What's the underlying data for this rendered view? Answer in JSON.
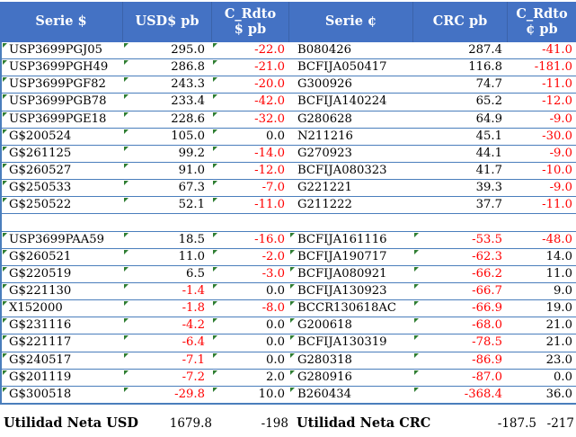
{
  "colors": {
    "header_bg": "#4472C4",
    "header_text": "#FFFFFF",
    "grid_line": "#4A7EBC",
    "negative_value": "#FF0000",
    "text": "#000000",
    "error_indicator_green": "#2E7D32"
  },
  "header": {
    "columns": [
      "Serie $",
      "USD$ pb",
      "C_Rdto\n$ pb",
      "Serie ¢",
      "CRC pb",
      "C_Rdto\n¢ pb"
    ]
  },
  "rows": [
    {
      "cells": [
        "USP3699PGJ05",
        "295.0",
        "-22.0",
        "B080426",
        "287.4",
        "-41.0"
      ],
      "flags": [
        0,
        1,
        2
      ]
    },
    {
      "cells": [
        "USP3699PGH49",
        "286.8",
        "-21.0",
        "BCFIJA050417",
        "116.8",
        "-181.0"
      ],
      "flags": [
        0,
        1,
        2
      ]
    },
    {
      "cells": [
        "USP3699PGF82",
        "243.3",
        "-20.0",
        "G300926",
        "74.7",
        "-11.0"
      ],
      "flags": [
        0,
        1,
        2
      ]
    },
    {
      "cells": [
        "USP3699PGB78",
        "233.4",
        "-42.0",
        "BCFIJA140224",
        "65.2",
        "-12.0"
      ],
      "flags": [
        0,
        1,
        2
      ]
    },
    {
      "cells": [
        "USP3699PGE18",
        "228.6",
        "-32.0",
        "G280628",
        "64.9",
        "-9.0"
      ],
      "flags": [
        0,
        1,
        2
      ]
    },
    {
      "cells": [
        "G$200524",
        "105.0",
        "0.0",
        "N211216",
        "45.1",
        "-30.0"
      ],
      "flags": [
        0,
        1,
        2
      ]
    },
    {
      "cells": [
        "G$261125",
        "99.2",
        "-14.0",
        "G270923",
        "44.1",
        "-9.0"
      ],
      "flags": [
        0,
        1,
        2
      ]
    },
    {
      "cells": [
        "G$260527",
        "91.0",
        "-12.0",
        "BCFIJA080323",
        "41.7",
        "-10.0"
      ],
      "flags": [
        0,
        1,
        2
      ]
    },
    {
      "cells": [
        "G$250533",
        "67.3",
        "-7.0",
        "G221221",
        "39.3",
        "-9.0"
      ],
      "flags": [
        0,
        1,
        2
      ]
    },
    {
      "cells": [
        "G$250522",
        "52.1",
        "-11.0",
        "G211222",
        "37.7",
        "-11.0"
      ],
      "flags": [
        0,
        1,
        2
      ]
    },
    {
      "blank": true,
      "cells": [
        "",
        "",
        "",
        "",
        "",
        ""
      ],
      "flags": []
    },
    {
      "cells": [
        "USP3699PAA59",
        "18.5",
        "-16.0",
        "BCFIJA161116",
        "-53.5",
        "-48.0"
      ],
      "flags": [
        0,
        1,
        2,
        3,
        4
      ]
    },
    {
      "cells": [
        "G$260521",
        "11.0",
        "-2.0",
        "BCFIJA190717",
        "-62.3",
        "14.0"
      ],
      "flags": [
        0,
        1,
        2,
        3,
        4
      ]
    },
    {
      "cells": [
        "G$220519",
        "6.5",
        "-3.0",
        "BCFIJA080921",
        "-66.2",
        "11.0"
      ],
      "flags": [
        0,
        1,
        2,
        3,
        4
      ]
    },
    {
      "cells": [
        "G$221130",
        "-1.4",
        "0.0",
        "BCFIJA130923",
        "-66.7",
        "9.0"
      ],
      "flags": [
        0,
        1,
        2,
        3,
        4
      ]
    },
    {
      "cells": [
        "X152000",
        "-1.8",
        "-8.0",
        "BCCR130618AC",
        "-66.9",
        "19.0"
      ],
      "flags": [
        0,
        1,
        2,
        3,
        4
      ]
    },
    {
      "cells": [
        "G$231116",
        "-4.2",
        "0.0",
        "G200618",
        "-68.0",
        "21.0"
      ],
      "flags": [
        0,
        1,
        2,
        3,
        4
      ]
    },
    {
      "cells": [
        "G$221117",
        "-6.4",
        "0.0",
        "BCFIJA130319",
        "-78.5",
        "21.0"
      ],
      "flags": [
        0,
        1,
        2,
        3,
        4
      ]
    },
    {
      "cells": [
        "G$240517",
        "-7.1",
        "0.0",
        "G280318",
        "-86.9",
        "23.0"
      ],
      "flags": [
        0,
        1,
        2,
        3,
        4
      ]
    },
    {
      "cells": [
        "G$201119",
        "-7.2",
        "2.0",
        "G280916",
        "-87.0",
        "0.0"
      ],
      "flags": [
        0,
        1,
        2,
        3,
        4
      ]
    },
    {
      "cells": [
        "G$300518",
        "-29.8",
        "10.0",
        "B260434",
        "-368.4",
        "36.0"
      ],
      "flags": [
        0,
        1,
        2,
        3,
        4
      ]
    }
  ],
  "footer": {
    "label_usd": "Utilidad Neta USD",
    "value_usd": "1679.8",
    "delta_usd": "-198",
    "label_crc": "Utilidad Neta CRC",
    "value_crc": "-187.5",
    "delta_crc": "-217"
  }
}
